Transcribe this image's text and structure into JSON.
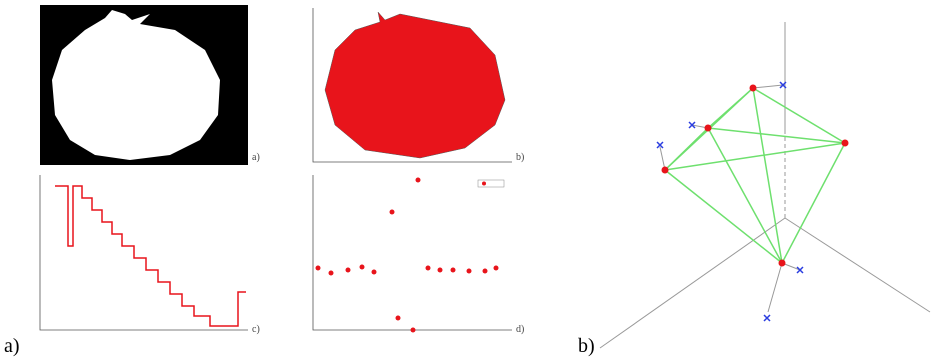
{
  "panels": [
    {
      "label": "a)",
      "subfigures": [
        {
          "label": "a)"
        },
        {
          "label": "b)"
        },
        {
          "label": "c)"
        },
        {
          "label": "d)"
        }
      ]
    },
    {
      "label": "b)"
    }
  ]
}
